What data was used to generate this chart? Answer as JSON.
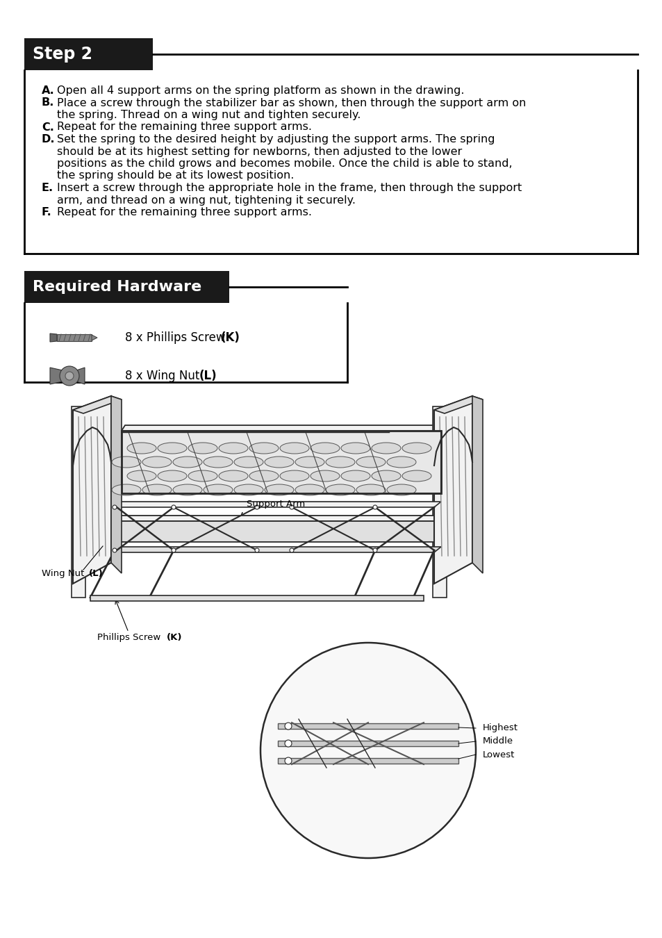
{
  "bg_color": "#ffffff",
  "step2_header": "Step 2",
  "header_bg": "#1a1a1a",
  "header_text_color": "#ffffff",
  "border_color": "#000000",
  "text_color": "#000000",
  "instructions": [
    [
      "A",
      "Open all 4 support arms on the spring platform as shown in the drawing."
    ],
    [
      "B",
      "Place a screw through the stabilizer bar as shown, then through the support arm on the spring. Thread on a wing nut and tighten securely."
    ],
    [
      "C",
      "Repeat for the remaining three support arms."
    ],
    [
      "D",
      "Set the spring to the desired height by adjusting the support arms. The spring should be at its highest setting for newborns, then adjusted to the lower positions as the child grows and becomes mobile. Once the child is able to stand, the spring should be at its lowest position."
    ],
    [
      "E",
      "Insert a screw through the appropriate hole in the frame, then through the support arm, and thread on a wing nut, tightening it securely."
    ],
    [
      "F",
      "Repeat for the remaining three support arms."
    ]
  ],
  "hardware_header": "Required Hardware",
  "hw_screw_text": "8 x Phillips Screw ",
  "hw_screw_bold": "(K)",
  "hw_nut_text": "8 x Wing Nut ",
  "hw_nut_bold": "(L)",
  "label_support_arm": "Support Arm",
  "label_wing_nut": "Wing Nut ",
  "label_wing_nut_bold": "(L)",
  "label_phillips": "Phillips Screw ",
  "label_phillips_bold": "(K)",
  "label_lowest": "Lowest",
  "label_middle": "Middle",
  "label_highest": "Highest"
}
